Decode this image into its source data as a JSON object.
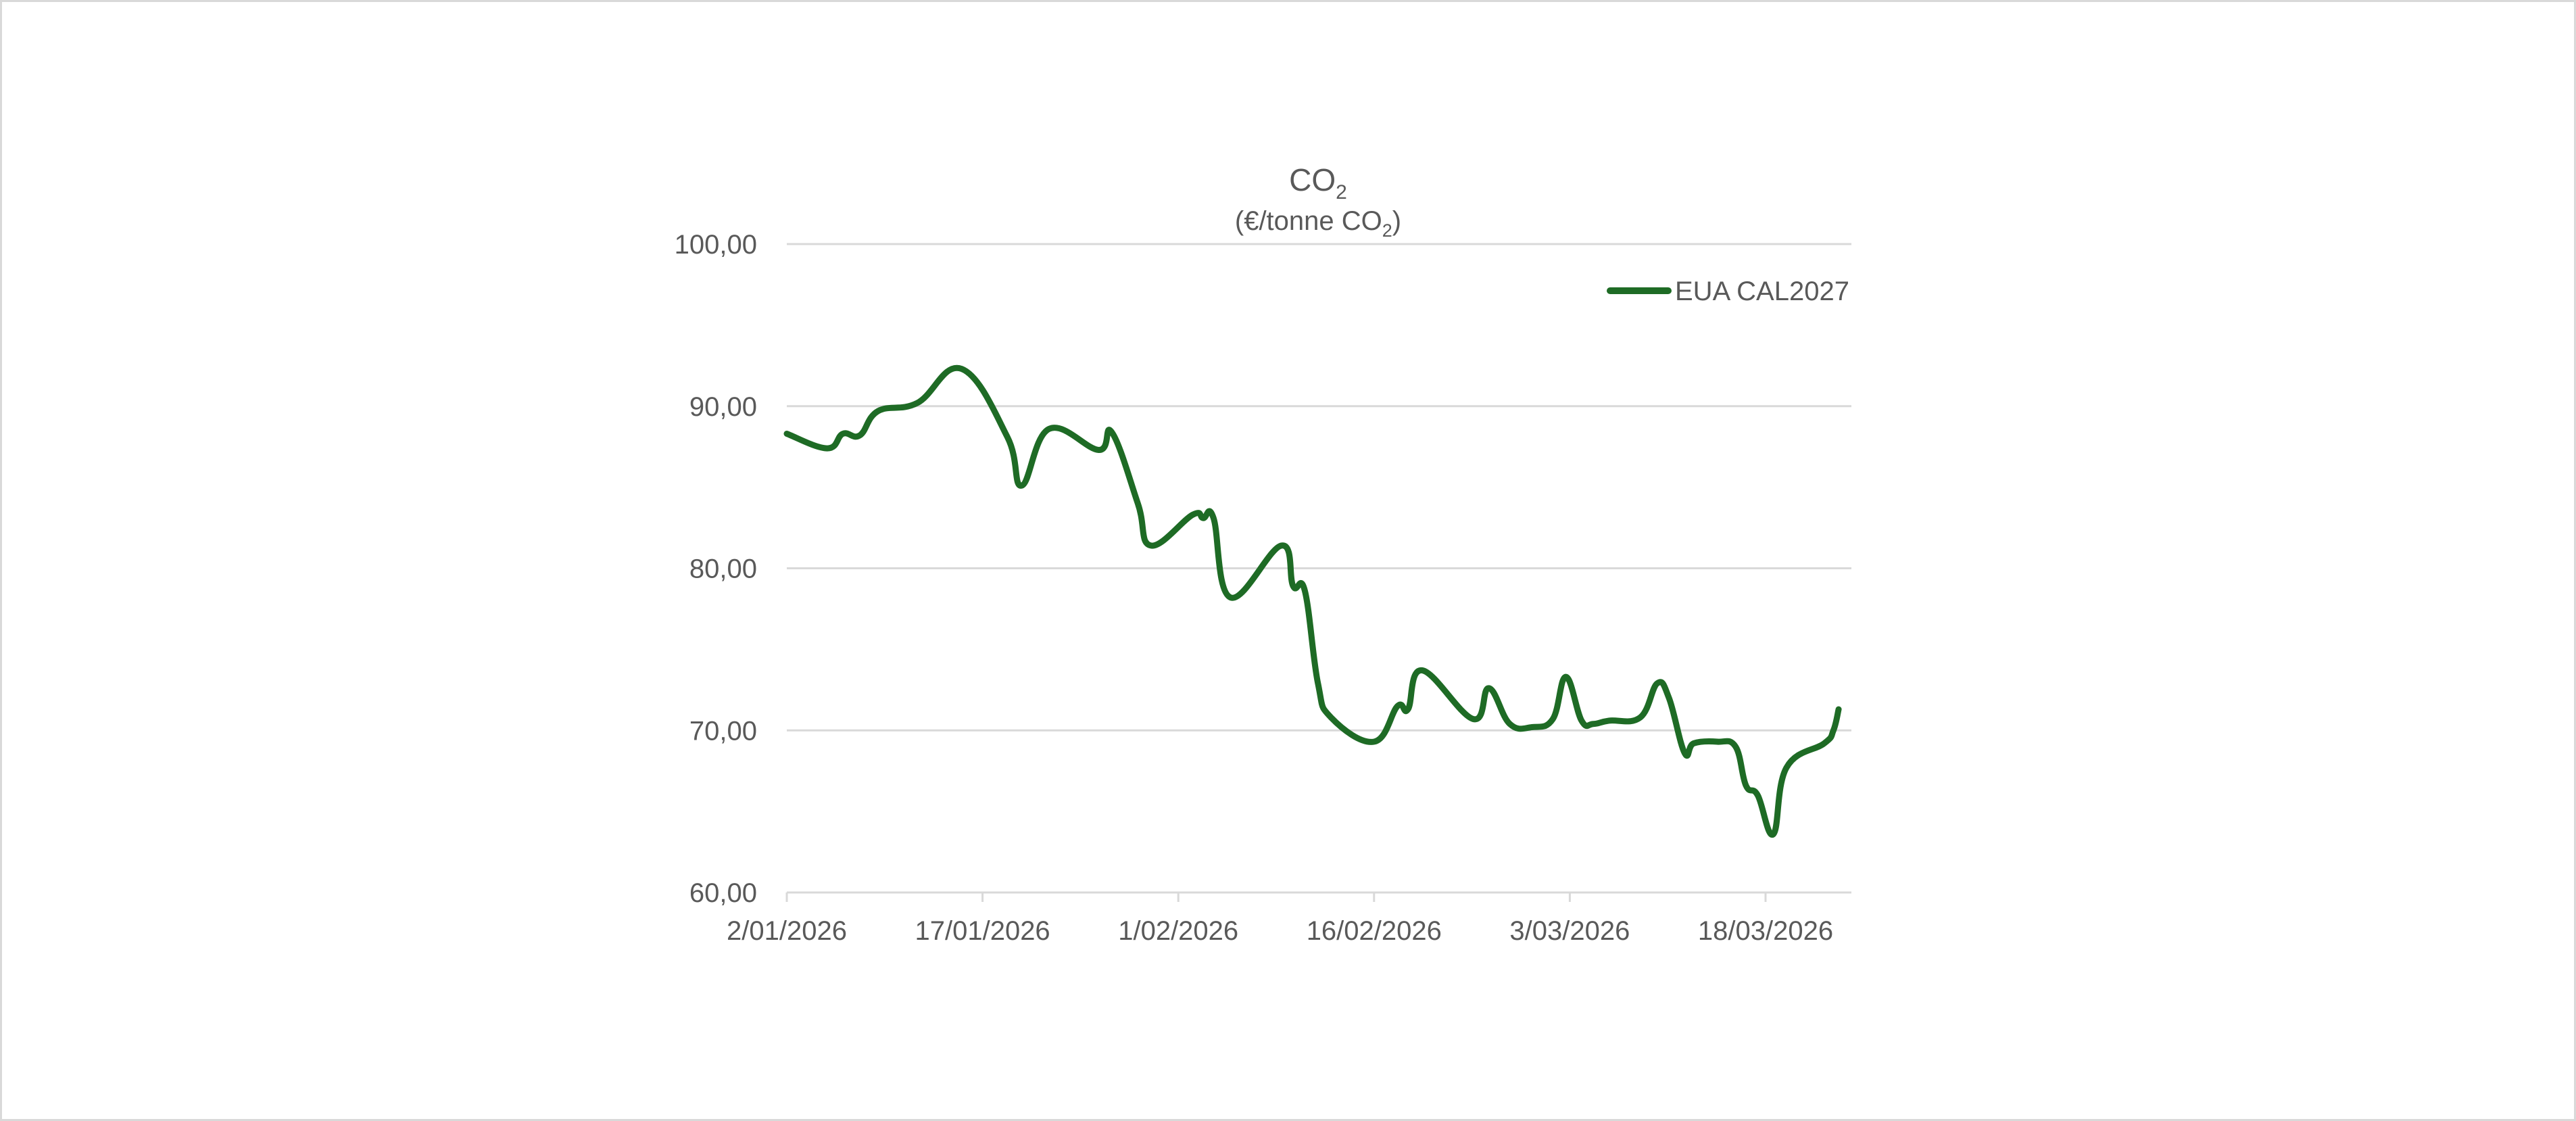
{
  "chart_data": {
    "type": "line",
    "title": "CO2",
    "title_main": "CO",
    "title_sub": "2",
    "subtitle_prefix": "(€/tonne CO",
    "subtitle_sub": "2",
    "subtitle_suffix": ")",
    "subtitle": "(€/tonne CO2)",
    "xlabel": "",
    "ylabel": "€/tonne CO2",
    "ylim": [
      60,
      100
    ],
    "yticks": [
      100,
      90,
      80,
      70,
      60
    ],
    "ytick_labels": [
      "100,00",
      "90,00",
      "80,00",
      "70,00",
      "60,00"
    ],
    "xtick_labels": [
      "2/01/2026",
      "17/01/2026",
      "1/02/2026",
      "16/02/2026",
      "3/03/2026",
      "18/03/2026"
    ],
    "xtick_days": [
      0,
      15,
      30,
      45,
      60,
      75
    ],
    "grid": true,
    "legend_position": "top-right",
    "series": [
      {
        "name": "EUA CAL2027",
        "color": "#1e6b25",
        "points": [
          {
            "date": "2/01/2026",
            "day": 0,
            "value": 88.3
          },
          {
            "date": "5/01/2026",
            "day": 3.1,
            "value": 87.4
          },
          {
            "date": "6/01/2026",
            "day": 4.3,
            "value": 88.3
          },
          {
            "date": "7/01/2026",
            "day": 5.6,
            "value": 88.2
          },
          {
            "date": "9/01/2026",
            "day": 7.0,
            "value": 89.7
          },
          {
            "date": "12/01/2026",
            "day": 10.0,
            "value": 90.2
          },
          {
            "date": "15/01/2026",
            "day": 13.4,
            "value": 92.3
          },
          {
            "date": "19/01/2026",
            "day": 16.9,
            "value": 88.1
          },
          {
            "date": "20/01/2026",
            "day": 18.0,
            "value": 85.1
          },
          {
            "date": "22/01/2026",
            "day": 20.1,
            "value": 88.6
          },
          {
            "date": "26/01/2026",
            "day": 23.9,
            "value": 87.3
          },
          {
            "date": "27/01/2026",
            "day": 24.9,
            "value": 88.4
          },
          {
            "date": "29/01/2026",
            "day": 26.9,
            "value": 84.0
          },
          {
            "date": "30/01/2026",
            "day": 27.9,
            "value": 81.4
          },
          {
            "date": "2/02/2026",
            "day": 31.1,
            "value": 83.3
          },
          {
            "date": "3/02/2026",
            "day": 31.9,
            "value": 83.1
          },
          {
            "date": "4/02/2026",
            "day": 32.7,
            "value": 83.1
          },
          {
            "date": "5/02/2026",
            "day": 34.0,
            "value": 78.2
          },
          {
            "date": "9/02/2026",
            "day": 37.9,
            "value": 81.4
          },
          {
            "date": "10/02/2026",
            "day": 38.8,
            "value": 78.9
          },
          {
            "date": "11/02/2026",
            "day": 39.7,
            "value": 78.6
          },
          {
            "date": "12/02/2026",
            "day": 40.7,
            "value": 72.9
          },
          {
            "date": "13/02/2026",
            "day": 41.7,
            "value": 70.8
          },
          {
            "date": "16/02/2026",
            "day": 45.0,
            "value": 69.3
          },
          {
            "date": "18/02/2026",
            "day": 46.8,
            "value": 71.5
          },
          {
            "date": "19/02/2026",
            "day": 47.6,
            "value": 71.3
          },
          {
            "date": "20/02/2026",
            "day": 48.7,
            "value": 73.7
          },
          {
            "date": "24/02/2026",
            "day": 52.6,
            "value": 70.7
          },
          {
            "date": "25/02/2026",
            "day": 53.8,
            "value": 72.6
          },
          {
            "date": "26/02/2026",
            "day": 55.4,
            "value": 70.4
          },
          {
            "date": "27/02/2026",
            "day": 57.1,
            "value": 70.2
          },
          {
            "date": "2/03/2026",
            "day": 58.7,
            "value": 70.7
          },
          {
            "date": "3/03/2026",
            "day": 59.7,
            "value": 73.3
          },
          {
            "date": "4/03/2026",
            "day": 60.9,
            "value": 70.6
          },
          {
            "date": "5/03/2026",
            "day": 61.8,
            "value": 70.4
          },
          {
            "date": "6/03/2026",
            "day": 63.0,
            "value": 70.6
          },
          {
            "date": "9/03/2026",
            "day": 65.4,
            "value": 70.8
          },
          {
            "date": "10/03/2026",
            "day": 66.7,
            "value": 72.9
          },
          {
            "date": "11/03/2026",
            "day": 67.6,
            "value": 72.0
          },
          {
            "date": "12/03/2026",
            "day": 68.8,
            "value": 68.6
          },
          {
            "date": "13/03/2026",
            "day": 69.5,
            "value": 69.2
          },
          {
            "date": "16/03/2026",
            "day": 71.3,
            "value": 69.3
          },
          {
            "date": "17/03/2026",
            "day": 72.7,
            "value": 69.0
          },
          {
            "date": "17/03/2026",
            "day": 73.5,
            "value": 66.6
          },
          {
            "date": "18/03/2026",
            "day": 74.4,
            "value": 66.0
          },
          {
            "date": "19/03/2026",
            "day": 75.6,
            "value": 63.6
          },
          {
            "date": "20/03/2026",
            "day": 76.6,
            "value": 67.7
          },
          {
            "date": "23/03/2026",
            "day": 79.5,
            "value": 69.2
          },
          {
            "date": "23/03/2026",
            "day": 80.2,
            "value": 70.0
          },
          {
            "date": "24/03/2026",
            "day": 80.6,
            "value": 71.3
          }
        ]
      }
    ]
  },
  "legend": {
    "label": "EUA CAL2027",
    "color": "#1e6b25"
  },
  "colors": {
    "line": "#1e6b25",
    "gridline": "#d9d9d9",
    "text": "#595959",
    "frame": "#d9d9d9"
  }
}
